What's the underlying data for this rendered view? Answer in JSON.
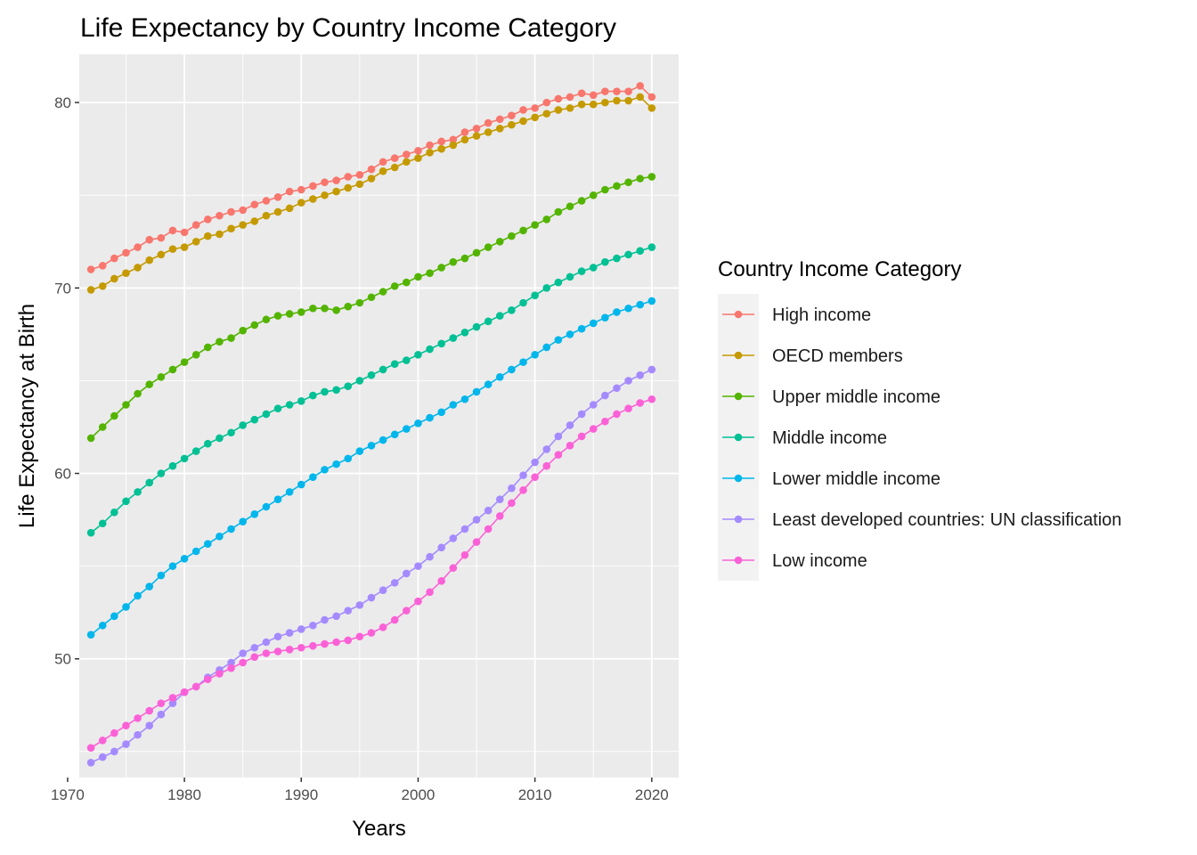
{
  "chart_data": {
    "type": "line",
    "title": "Life Expectancy by Country Income Category",
    "xlabel": "Years",
    "ylabel": "Life Expectancy at Birth",
    "xlim": [
      1971,
      2022.3
    ],
    "ylim": [
      43.6,
      82.6
    ],
    "x_ticks": [
      1970,
      1980,
      1990,
      2000,
      2010,
      2020
    ],
    "y_ticks": [
      50,
      60,
      70,
      80
    ],
    "grid": true,
    "legend": {
      "title": "Country Income Category",
      "position": "right"
    },
    "x": [
      1972,
      1973,
      1974,
      1975,
      1976,
      1977,
      1978,
      1979,
      1980,
      1981,
      1982,
      1983,
      1984,
      1985,
      1986,
      1987,
      1988,
      1989,
      1990,
      1991,
      1992,
      1993,
      1994,
      1995,
      1996,
      1997,
      1998,
      1999,
      2000,
      2001,
      2002,
      2003,
      2004,
      2005,
      2006,
      2007,
      2008,
      2009,
      2010,
      2011,
      2012,
      2013,
      2014,
      2015,
      2016,
      2017,
      2018,
      2019,
      2020
    ],
    "series": [
      {
        "name": "High income",
        "color": "#F8766D",
        "values": [
          71.0,
          71.2,
          71.6,
          71.9,
          72.2,
          72.6,
          72.7,
          73.1,
          73.0,
          73.4,
          73.7,
          73.9,
          74.1,
          74.2,
          74.5,
          74.7,
          74.9,
          75.2,
          75.3,
          75.5,
          75.7,
          75.8,
          76.0,
          76.1,
          76.4,
          76.8,
          77.0,
          77.2,
          77.4,
          77.7,
          77.9,
          78.0,
          78.4,
          78.6,
          78.9,
          79.1,
          79.3,
          79.6,
          79.7,
          80.0,
          80.2,
          80.3,
          80.5,
          80.4,
          80.6,
          80.6,
          80.6,
          80.9,
          80.3
        ]
      },
      {
        "name": "OECD members",
        "color": "#C49A00",
        "values": [
          69.9,
          70.1,
          70.5,
          70.8,
          71.1,
          71.5,
          71.8,
          72.1,
          72.2,
          72.5,
          72.8,
          72.9,
          73.2,
          73.4,
          73.6,
          73.9,
          74.1,
          74.3,
          74.6,
          74.8,
          75.0,
          75.2,
          75.4,
          75.6,
          75.9,
          76.3,
          76.5,
          76.8,
          77.0,
          77.3,
          77.5,
          77.7,
          78.0,
          78.2,
          78.4,
          78.6,
          78.8,
          79.0,
          79.2,
          79.4,
          79.6,
          79.7,
          79.9,
          79.9,
          80.0,
          80.1,
          80.1,
          80.3,
          79.7
        ]
      },
      {
        "name": "Upper middle income",
        "color": "#53B400",
        "values": [
          61.9,
          62.5,
          63.1,
          63.7,
          64.3,
          64.8,
          65.2,
          65.6,
          66.0,
          66.4,
          66.8,
          67.1,
          67.3,
          67.7,
          68.0,
          68.3,
          68.5,
          68.6,
          68.7,
          68.9,
          68.9,
          68.8,
          69.0,
          69.2,
          69.5,
          69.8,
          70.1,
          70.3,
          70.6,
          70.8,
          71.1,
          71.4,
          71.6,
          71.9,
          72.2,
          72.5,
          72.8,
          73.1,
          73.4,
          73.7,
          74.1,
          74.4,
          74.7,
          75.0,
          75.3,
          75.5,
          75.7,
          75.9,
          76.0
        ]
      },
      {
        "name": "Middle income",
        "color": "#00C094",
        "values": [
          56.8,
          57.3,
          57.9,
          58.5,
          59.0,
          59.5,
          60.0,
          60.4,
          60.8,
          61.2,
          61.6,
          61.9,
          62.2,
          62.6,
          62.9,
          63.2,
          63.5,
          63.7,
          63.9,
          64.2,
          64.4,
          64.5,
          64.7,
          65.0,
          65.3,
          65.6,
          65.9,
          66.1,
          66.4,
          66.7,
          67.0,
          67.3,
          67.6,
          67.9,
          68.2,
          68.5,
          68.8,
          69.2,
          69.6,
          70.0,
          70.3,
          70.6,
          70.9,
          71.1,
          71.4,
          71.6,
          71.8,
          72.0,
          72.2
        ]
      },
      {
        "name": "Lower middle income",
        "color": "#00B6EB",
        "values": [
          51.3,
          51.8,
          52.3,
          52.8,
          53.4,
          53.9,
          54.5,
          55.0,
          55.4,
          55.8,
          56.2,
          56.6,
          57.0,
          57.4,
          57.8,
          58.2,
          58.6,
          59.0,
          59.4,
          59.8,
          60.2,
          60.5,
          60.8,
          61.2,
          61.5,
          61.8,
          62.1,
          62.4,
          62.7,
          63.0,
          63.3,
          63.7,
          64.0,
          64.4,
          64.8,
          65.2,
          65.6,
          66.0,
          66.4,
          66.8,
          67.2,
          67.5,
          67.8,
          68.1,
          68.4,
          68.7,
          68.9,
          69.1,
          69.3
        ]
      },
      {
        "name": "Least developed countries: UN classification",
        "color": "#A58AFF",
        "values": [
          44.4,
          44.7,
          45.0,
          45.4,
          45.9,
          46.4,
          47.0,
          47.6,
          48.2,
          48.5,
          49.0,
          49.4,
          49.8,
          50.3,
          50.6,
          50.9,
          51.2,
          51.4,
          51.6,
          51.8,
          52.1,
          52.3,
          52.6,
          52.9,
          53.3,
          53.7,
          54.1,
          54.6,
          55.0,
          55.5,
          56.0,
          56.5,
          57.0,
          57.5,
          58.0,
          58.6,
          59.2,
          59.9,
          60.6,
          61.3,
          62.0,
          62.6,
          63.2,
          63.7,
          64.2,
          64.6,
          65.0,
          65.3,
          65.6
        ]
      },
      {
        "name": "Low income",
        "color": "#FB61D7",
        "values": [
          45.2,
          45.6,
          46.0,
          46.4,
          46.8,
          47.2,
          47.6,
          47.9,
          48.2,
          48.5,
          48.9,
          49.2,
          49.5,
          49.8,
          50.1,
          50.3,
          50.4,
          50.5,
          50.6,
          50.7,
          50.8,
          50.9,
          51.0,
          51.2,
          51.4,
          51.7,
          52.1,
          52.6,
          53.1,
          53.6,
          54.2,
          54.9,
          55.6,
          56.3,
          57.0,
          57.7,
          58.4,
          59.1,
          59.8,
          60.4,
          61.0,
          61.5,
          62.0,
          62.4,
          62.8,
          63.2,
          63.5,
          63.8,
          64.0
        ]
      }
    ]
  }
}
